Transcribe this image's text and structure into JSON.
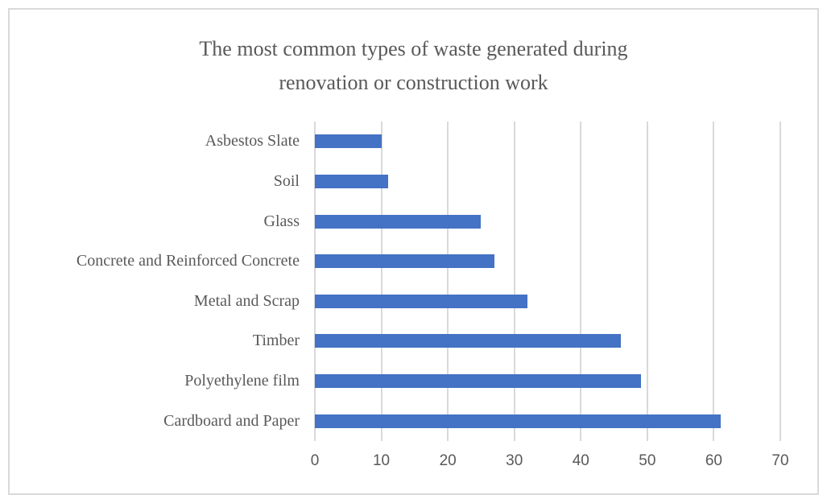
{
  "chart_data": {
    "type": "bar",
    "orientation": "horizontal",
    "title": "The most common types of waste generated during renovation or construction work",
    "title_lines": [
      "The most common types of waste generated during",
      "renovation or construction work"
    ],
    "categories": [
      "Asbestos Slate",
      "Soil",
      "Glass",
      "Concrete and Reinforced Concrete",
      "Metal and Scrap",
      "Timber",
      "Polyethylene film",
      "Cardboard and Paper"
    ],
    "values": [
      10,
      11,
      25,
      27,
      32,
      46,
      49,
      61
    ],
    "xlabel": "",
    "ylabel": "",
    "xlim": [
      0,
      70
    ],
    "xticks": [
      0,
      10,
      20,
      30,
      40,
      50,
      60,
      70
    ],
    "grid": "vertical",
    "legend": "none"
  },
  "colors": {
    "bar": "#4472C4",
    "gridline": "#D9D9D9",
    "border": "#D9D9D9",
    "text": "#595959",
    "background": "#FFFFFF"
  }
}
